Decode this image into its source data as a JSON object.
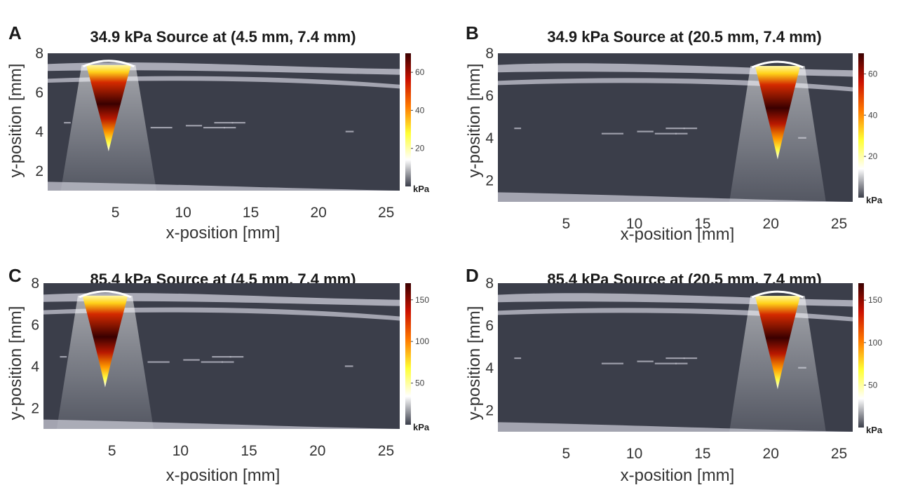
{
  "chart_data": [
    {
      "type": "heatmap",
      "panel_label": "A",
      "title": "34.9 kPa Source at (4.5 mm, 7.4 mm)",
      "xlabel": "x-position [mm]",
      "ylabel": "y-position [mm]",
      "x_ticks": [
        "5",
        "10",
        "15",
        "20",
        "25"
      ],
      "y_ticks": [
        "2",
        "4",
        "6",
        "8"
      ],
      "xlim": [
        0,
        26
      ],
      "ylim": [
        1,
        8
      ],
      "source": {
        "x": 4.5,
        "y": 7.4,
        "pressure_kPa": 34.9
      },
      "peak_kPa": 70,
      "colorbar": {
        "ticks": [
          "60",
          "40",
          "20"
        ],
        "unit": "kPa",
        "range": [
          0,
          70
        ]
      }
    },
    {
      "type": "heatmap",
      "panel_label": "B",
      "title": "34.9 kPa Source at (20.5 mm, 7.4 mm)",
      "xlabel": "x-position [mm]",
      "ylabel": "y-position [mm]",
      "x_ticks": [
        "5",
        "10",
        "15",
        "20",
        "25"
      ],
      "y_ticks": [
        "2",
        "4",
        "6",
        "8"
      ],
      "xlim": [
        0,
        26
      ],
      "ylim": [
        1,
        8
      ],
      "source": {
        "x": 20.5,
        "y": 7.4,
        "pressure_kPa": 34.9
      },
      "peak_kPa": 70,
      "colorbar": {
        "ticks": [
          "60",
          "40",
          "20"
        ],
        "unit": "kPa",
        "range": [
          0,
          70
        ]
      }
    },
    {
      "type": "heatmap",
      "panel_label": "C",
      "title": "85.4 kPa Source at (4.5 mm, 7.4 mm)",
      "xlabel": "x-position [mm]",
      "ylabel": "y-position [mm]",
      "x_ticks": [
        "5",
        "10",
        "15",
        "20",
        "25"
      ],
      "y_ticks": [
        "2",
        "4",
        "6",
        "8"
      ],
      "xlim": [
        0,
        26
      ],
      "ylim": [
        1,
        8
      ],
      "source": {
        "x": 4.5,
        "y": 7.4,
        "pressure_kPa": 85.4
      },
      "peak_kPa": 170,
      "colorbar": {
        "ticks": [
          "150",
          "100",
          "50"
        ],
        "unit": "kPa",
        "range": [
          0,
          170
        ]
      }
    },
    {
      "type": "heatmap",
      "panel_label": "D",
      "title": "85.4 kPa Source at (20.5 mm, 7.4 mm)",
      "xlabel": "x-position [mm]",
      "ylabel": "y-position [mm]",
      "x_ticks": [
        "5",
        "10",
        "15",
        "20",
        "25"
      ],
      "y_ticks": [
        "2",
        "4",
        "6",
        "8"
      ],
      "xlim": [
        0,
        26
      ],
      "ylim": [
        1,
        8
      ],
      "source": {
        "x": 20.5,
        "y": 7.4,
        "pressure_kPa": 85.4
      },
      "peak_kPa": 170,
      "colorbar": {
        "ticks": [
          "150",
          "100",
          "50"
        ],
        "unit": "kPa",
        "range": [
          0,
          170
        ]
      }
    }
  ],
  "colors": {
    "background": "#3b3e4a",
    "tissue_bands": "#b6b6c2",
    "colormap": [
      "#3b3e4a",
      "#ffffff",
      "#ffff33",
      "#ff7a00",
      "#cc1100",
      "#3a0000"
    ]
  }
}
